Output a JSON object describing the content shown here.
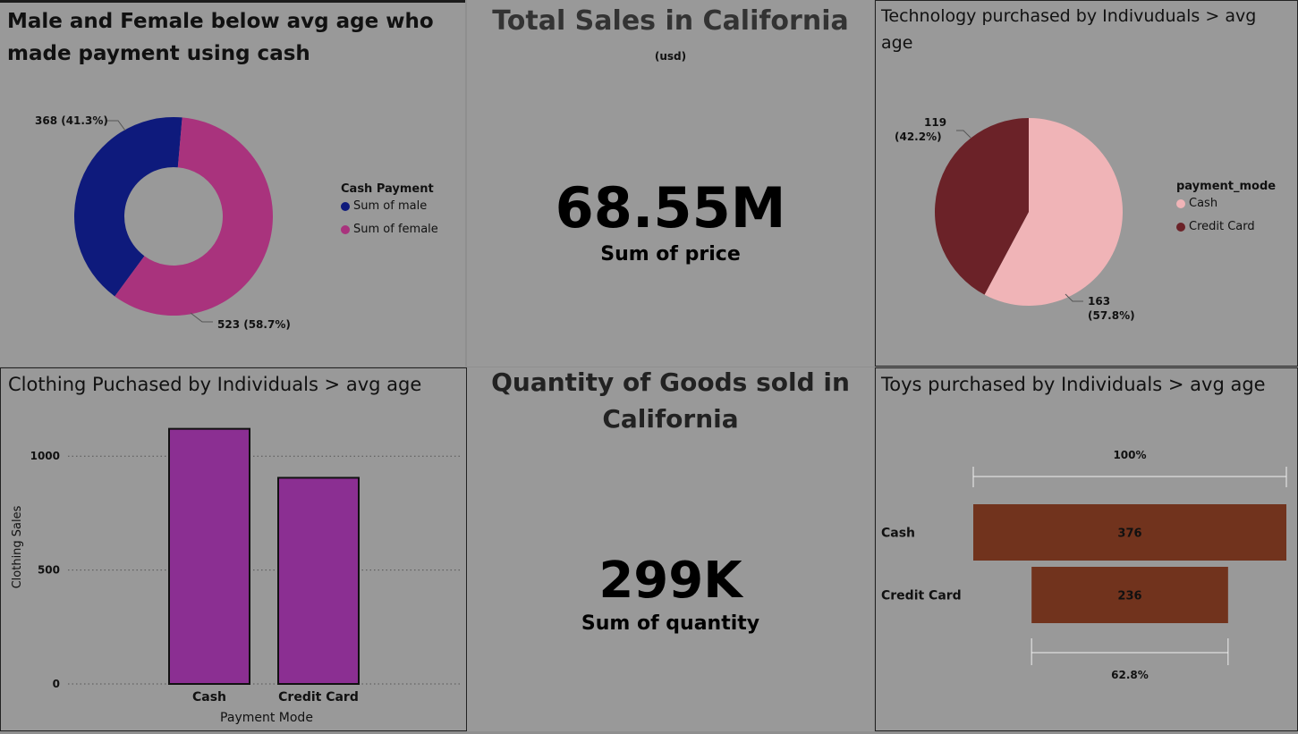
{
  "panels": {
    "donut": {
      "title": "Male and Female below avg age who made payment using cash",
      "legend_title": "Cash Payment",
      "labels": {
        "male": "368 (41.3%)",
        "female": "523 (58.7%)"
      }
    },
    "total_sales": {
      "title": "Total Sales in California",
      "subtitle": "(usd)",
      "value": "68.55M",
      "label": "Sum of price"
    },
    "tech_pie": {
      "title": "Technology purchased by Indivuduals > avg age",
      "legend_title": "payment_mode",
      "labels": {
        "credit_line1": "119",
        "credit_line2": "(42.2%)",
        "cash_line1": "163",
        "cash_line2": "(57.8%)"
      }
    },
    "clothing": {
      "title": "Clothing Puchased by Individuals > avg age"
    },
    "quantity": {
      "title_line1": "Quantity of Goods sold in",
      "title_line2": "California",
      "value": "299K",
      "label": "Sum of quantity"
    },
    "toys": {
      "title": "Toys purchased by Individuals > avg age",
      "top_pct": "100%",
      "bottom_pct": "62.8%"
    }
  },
  "chart_data": [
    {
      "type": "pie",
      "title": "Male and Female below avg age who made payment using cash",
      "legend_title": "Cash Payment",
      "legend_position": "right",
      "categories": [
        "Sum of male",
        "Sum of female"
      ],
      "values": [
        368,
        523
      ],
      "percentages": [
        41.3,
        58.7
      ],
      "colors": [
        "#0e1a7c",
        "#a9337d"
      ],
      "donut": true
    },
    {
      "type": "pie",
      "title": "Technology purchased by Indivuduals > avg age",
      "legend_title": "payment_mode",
      "legend_position": "right",
      "categories": [
        "Cash",
        "Credit Card"
      ],
      "values": [
        163,
        119
      ],
      "percentages": [
        57.8,
        42.2
      ],
      "colors": [
        "#f0b4b7",
        "#6b2228"
      ]
    },
    {
      "type": "bar",
      "title": "Clothing Puchased by Individuals > avg age",
      "categories": [
        "Cash",
        "Credit Card"
      ],
      "values": [
        1120,
        905
      ],
      "xlabel": "Payment Mode",
      "ylabel": "Clothing Sales",
      "ylim": [
        0,
        1150
      ],
      "yticks": [
        "0",
        "500",
        "1000"
      ],
      "ytick_values": [
        0,
        500,
        1000
      ],
      "grid": true,
      "color": "#8b2f92"
    },
    {
      "type": "bar",
      "orientation": "funnel",
      "title": "Toys purchased by Individuals > avg age",
      "categories": [
        "Cash",
        "Credit Card"
      ],
      "values": [
        376,
        236
      ],
      "value_labels": [
        "376",
        "236"
      ],
      "color": "#71331d"
    }
  ]
}
